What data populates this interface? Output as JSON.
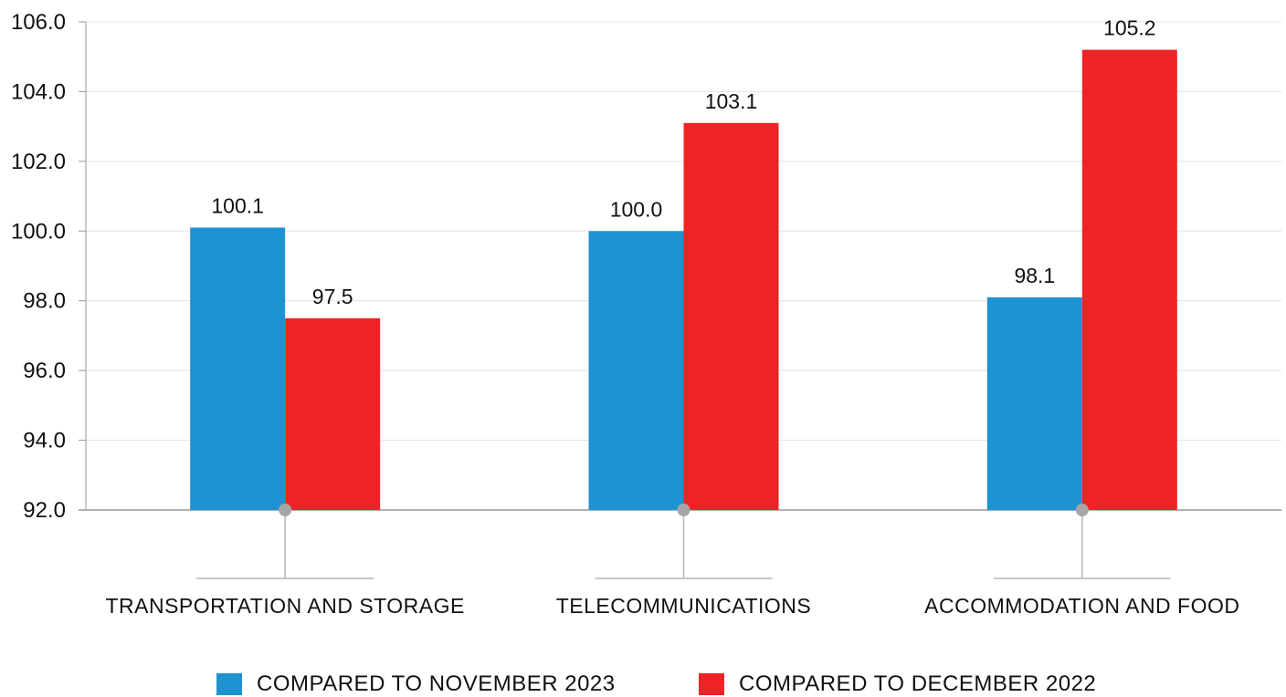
{
  "chart_data": {
    "type": "bar",
    "title": "",
    "xlabel": "",
    "ylabel": "",
    "ylim": [
      92,
      106
    ],
    "yticks": [
      "92.0",
      "94.0",
      "96.0",
      "98.0",
      "100.0",
      "102.0",
      "104.0",
      "106.0"
    ],
    "categories": [
      "TRANSPORTATION AND STORAGE",
      "TELECOMMUNICATIONS",
      "ACCOMMODATION AND FOOD"
    ],
    "series": [
      {
        "name": "COMPARED TO NOVEMBER 2023",
        "color": "#1f93d1",
        "values": [
          100.1,
          100.0,
          98.1
        ],
        "labels": [
          "100.1",
          "100.0",
          "98.1"
        ]
      },
      {
        "name": "COMPARED TO DECEMBER 2022",
        "color": "#ee2326",
        "values": [
          97.5,
          103.1,
          105.2
        ],
        "labels": [
          "97.5",
          "103.1",
          "105.2"
        ]
      }
    ],
    "grid": true,
    "legend_position": "bottom"
  }
}
